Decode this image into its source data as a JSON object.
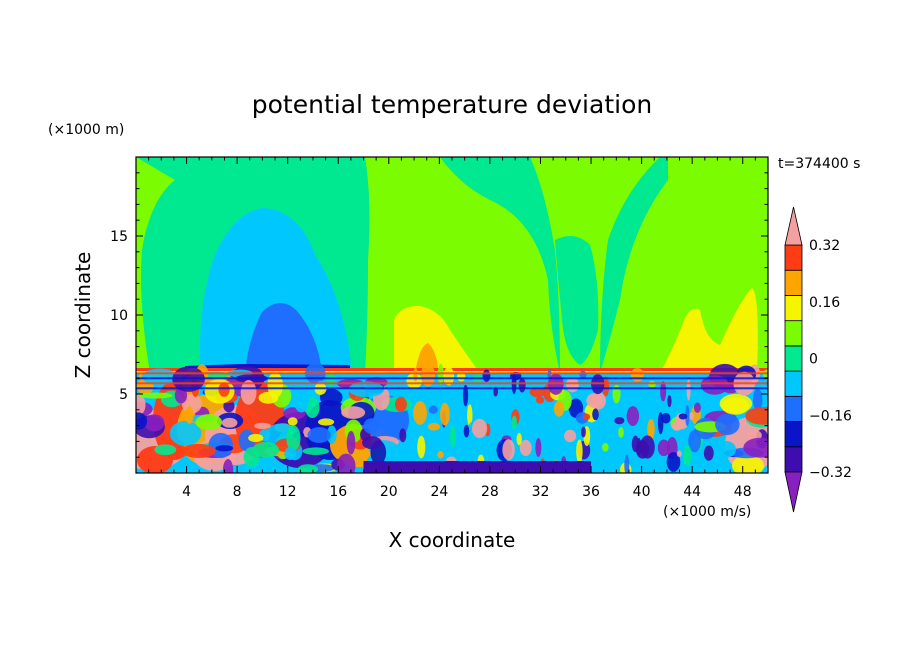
{
  "chart_data": {
    "type": "heatmap",
    "title": "potential temperature deviation",
    "xlabel": "X coordinate",
    "ylabel": "Z coordinate",
    "x_unit": "(×1000 m/s)",
    "y_unit": "(×1000 m)",
    "time_label": "t=374400 s",
    "xlim": [
      0,
      50
    ],
    "ylim": [
      0,
      20
    ],
    "x_ticks": [
      4,
      8,
      12,
      16,
      20,
      24,
      28,
      32,
      36,
      40,
      44,
      48
    ],
    "y_ticks": [
      5,
      10,
      15
    ],
    "colorbar": {
      "levels": [
        -0.4,
        -0.32,
        -0.24,
        -0.16,
        -0.08,
        0,
        0.08,
        0.16,
        0.24,
        0.32,
        0.4
      ],
      "tick_labels": [
        "0.32",
        "0.16",
        "0",
        "−0.16",
        "−0.32"
      ],
      "tick_values": [
        0.32,
        0.16,
        0,
        -0.16,
        -0.32
      ],
      "colors": [
        "#8a1fc0",
        "#3d0db0",
        "#0a14c8",
        "#1e6eff",
        "#00c8ff",
        "#00e890",
        "#7cfc00",
        "#f5f500",
        "#ffa500",
        "#ff3c14",
        "#f5a0a0"
      ],
      "extend": "both"
    }
  }
}
